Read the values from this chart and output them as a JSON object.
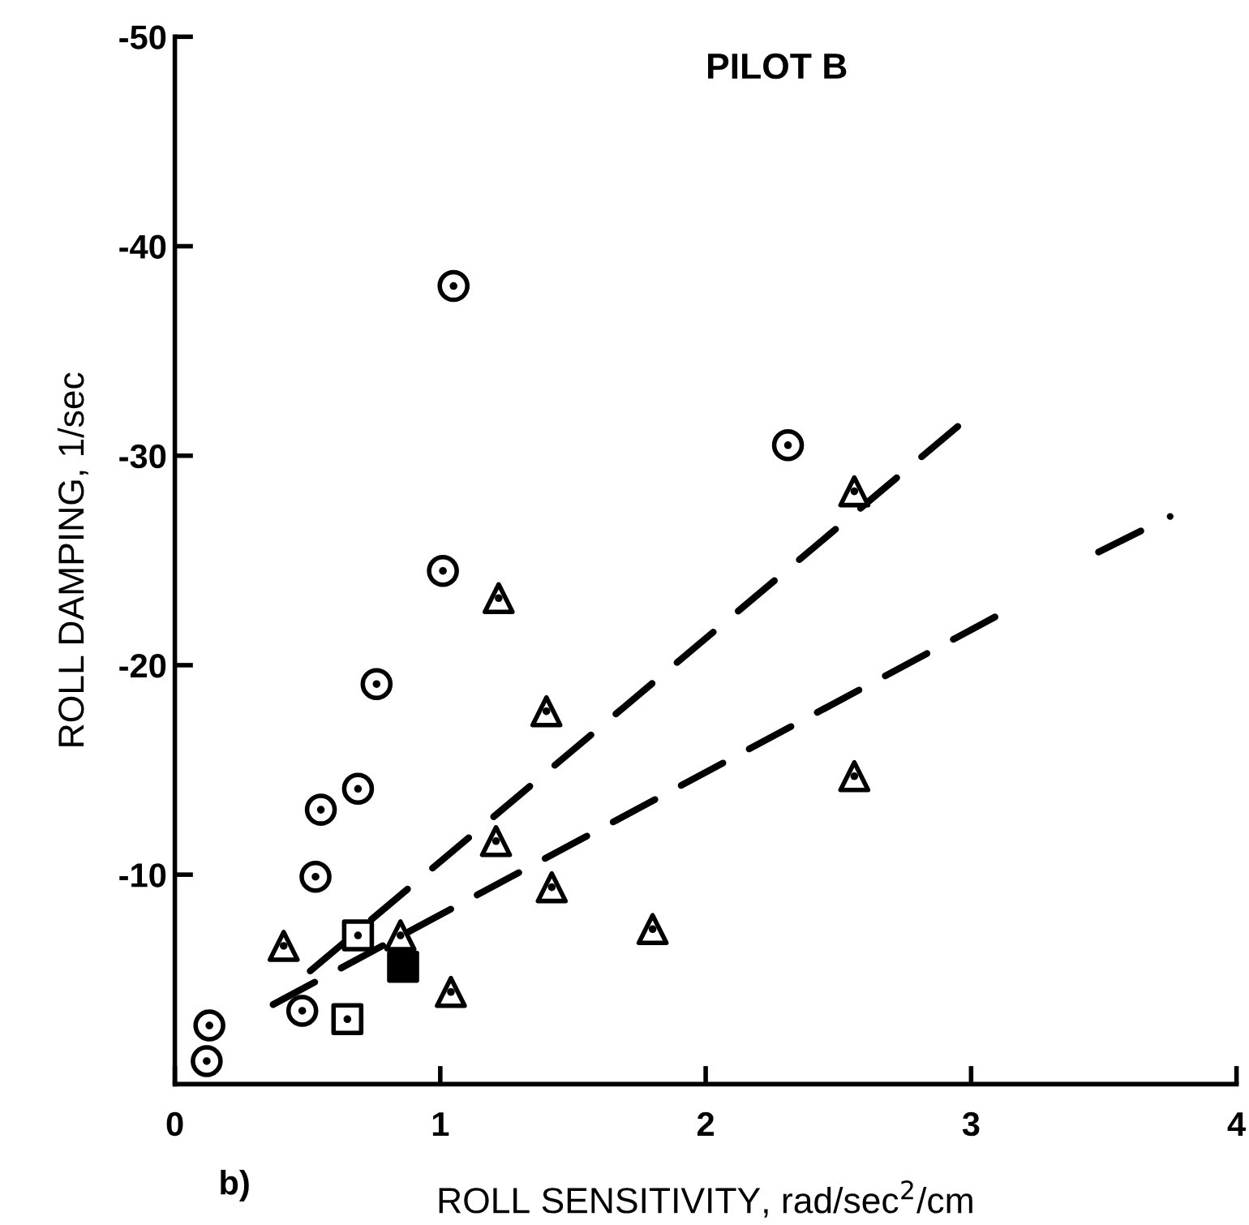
{
  "chart_data": {
    "type": "scatter",
    "title": "PILOT B",
    "xlabel": "ROLL SENSITIVITY, rad/sec$^{2}$/cm",
    "ylabel": "ROLL DAMPING, 1/sec",
    "annotations": [
      "b)"
    ],
    "xlim": [
      0,
      4
    ],
    "ylim": [
      0,
      -50
    ],
    "xticks": [
      0,
      1,
      2,
      3,
      4
    ],
    "yticks": [
      -10,
      -20,
      -30,
      -40,
      -50
    ],
    "grid": false,
    "legend": false,
    "series": [
      {
        "marker": "circle",
        "color": "#000000",
        "x": [
          1.05,
          1.01,
          2.31,
          0.76,
          0.69,
          0.55,
          0.53,
          0.48,
          0.13,
          0.12
        ],
        "values": [
          -38.1,
          -24.5,
          -30.5,
          -19.1,
          -14.1,
          -13.1,
          -9.9,
          -3.5,
          -2.8,
          -1.1
        ]
      },
      {
        "marker": "triangle",
        "color": "#000000",
        "x": [
          1.22,
          1.4,
          1.21,
          1.42,
          1.8,
          0.41,
          0.85,
          1.04,
          2.56,
          2.56
        ],
        "values": [
          -23.2,
          -17.8,
          -11.6,
          -9.4,
          -7.4,
          -6.6,
          -7.1,
          -4.4,
          -28.3,
          -14.7
        ]
      },
      {
        "marker": "square",
        "color": "#000000",
        "x": [
          0.69,
          0.65
        ],
        "values": [
          -7.1,
          -3.1
        ]
      },
      {
        "marker": "square",
        "color": "#000000",
        "colors": [
          "#000000"
        ],
        "x": [
          0.86
        ],
        "values": [
          -5.6
        ]
      },
      {
        "type": "line",
        "line_style": "dashed",
        "color": "#000000",
        "x": [
          0.51,
          2.95
        ],
        "values": [
          -5.4,
          -31.4
        ]
      },
      {
        "type": "line",
        "line_style": "dashed",
        "color": "#000000",
        "x": [
          0.37,
          3.09
        ],
        "values": [
          -3.8,
          -22.3
        ]
      },
      {
        "type": "line",
        "line_style": "dashed",
        "color": "#000000",
        "x": [
          3.48,
          3.75
        ],
        "values": [
          -25.4,
          -27.1
        ]
      }
    ]
  }
}
